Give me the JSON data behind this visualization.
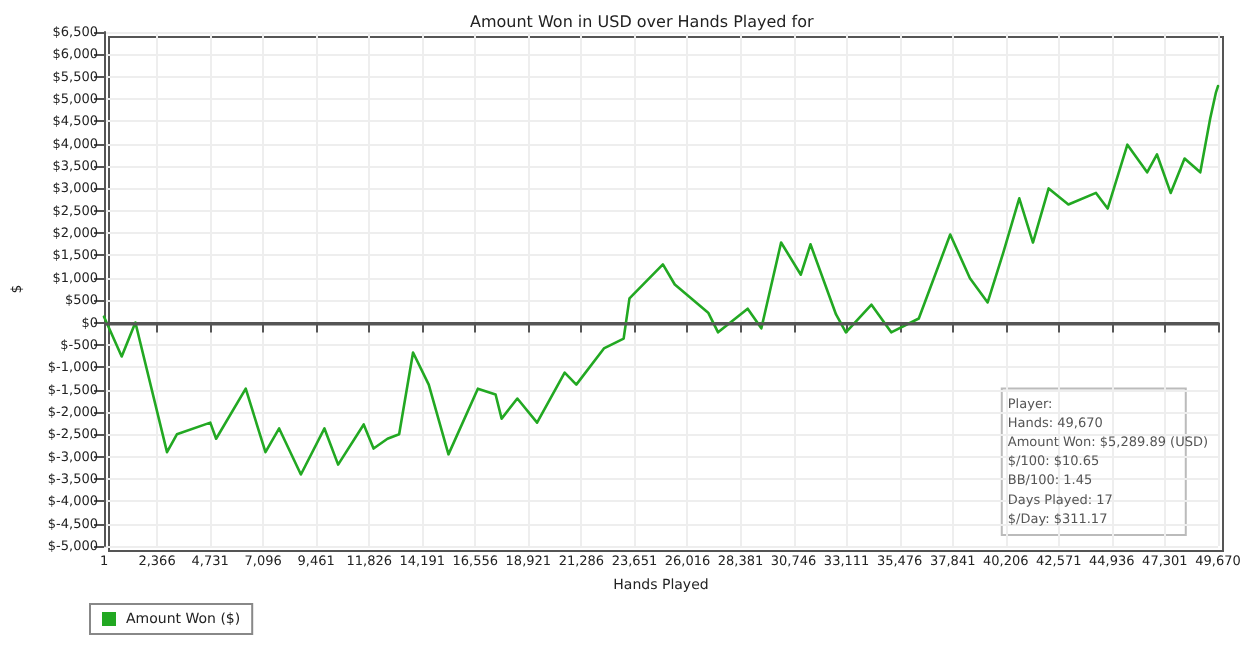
{
  "chart_data": {
    "type": "line",
    "title": "Amount Won in USD over Hands Played for",
    "xlabel": "Hands Played",
    "ylabel": "$",
    "x": [
      1,
      790,
      1400,
      2810,
      3250,
      4740,
      5000,
      6320,
      7200,
      7810,
      8780,
      9830,
      10440,
      11580,
      12020,
      12640,
      13160,
      13780,
      14480,
      15360,
      16670,
      17460,
      17730,
      18430,
      19310,
      20540,
      21060,
      22290,
      23170,
      23430,
      24920,
      25450,
      26940,
      27380,
      28700,
      29310,
      30190,
      31070,
      31500,
      32640,
      33080,
      34220,
      35100,
      36330,
      37730,
      38610,
      39400,
      40100,
      40810,
      41420,
      42120,
      43000,
      44230,
      44750,
      45630,
      46510,
      46950,
      47560,
      48180,
      48880,
      49320,
      49580,
      49670
    ],
    "series": [
      {
        "name": "Amount Won ($)",
        "color": "#22a822",
        "values": [
          130,
          -760,
          0,
          -2900,
          -2500,
          -2240,
          -2600,
          -1480,
          -2900,
          -2370,
          -3400,
          -2370,
          -3180,
          -2280,
          -2820,
          -2600,
          -2500,
          -670,
          -1390,
          -2950,
          -1480,
          -1610,
          -2150,
          -1700,
          -2240,
          -1120,
          -1390,
          -580,
          -360,
          540,
          1300,
          850,
          220,
          -220,
          310,
          -130,
          1790,
          1070,
          1750,
          180,
          -220,
          400,
          -220,
          90,
          1970,
          990,
          450,
          1570,
          2780,
          1790,
          3000,
          2640,
          2900,
          2550,
          3980,
          3360,
          3760,
          2900,
          3670,
          3360,
          4560,
          5150,
          5290
        ]
      }
    ],
    "xlim": [
      1,
      49670
    ],
    "xticks": [
      {
        "value": 1,
        "label": "1"
      },
      {
        "value": 2366,
        "label": "2,366"
      },
      {
        "value": 4731,
        "label": "4,731"
      },
      {
        "value": 7096,
        "label": "7,096"
      },
      {
        "value": 9461,
        "label": "9,461"
      },
      {
        "value": 11826,
        "label": "11,826"
      },
      {
        "value": 14191,
        "label": "14,191"
      },
      {
        "value": 16556,
        "label": "16,556"
      },
      {
        "value": 18921,
        "label": "18,921"
      },
      {
        "value": 21286,
        "label": "21,286"
      },
      {
        "value": 23651,
        "label": "23,651"
      },
      {
        "value": 26016,
        "label": "26,016"
      },
      {
        "value": 28381,
        "label": "28,381"
      },
      {
        "value": 30746,
        "label": "30,746"
      },
      {
        "value": 33111,
        "label": "33,111"
      },
      {
        "value": 35476,
        "label": "35,476"
      },
      {
        "value": 37841,
        "label": "37,841"
      },
      {
        "value": 40206,
        "label": "40,206"
      },
      {
        "value": 42571,
        "label": "42,571"
      },
      {
        "value": 44936,
        "label": "44,936"
      },
      {
        "value": 47301,
        "label": "47,301"
      },
      {
        "value": 49670,
        "label": "49,670"
      }
    ],
    "ylim": [
      -5000,
      6500
    ],
    "yticks": [
      {
        "value": -5000,
        "label": "$-5,000"
      },
      {
        "value": -4500,
        "label": "$-4,500"
      },
      {
        "value": -4000,
        "label": "$-4,000"
      },
      {
        "value": -3500,
        "label": "$-3,500"
      },
      {
        "value": -3000,
        "label": "$-3,000"
      },
      {
        "value": -2500,
        "label": "$-2,500"
      },
      {
        "value": -2000,
        "label": "$-2,000"
      },
      {
        "value": -1500,
        "label": "$-1,500"
      },
      {
        "value": -1000,
        "label": "$-1,000"
      },
      {
        "value": -500,
        "label": "$-500"
      },
      {
        "value": 0,
        "label": "$0"
      },
      {
        "value": 500,
        "label": "$500"
      },
      {
        "value": 1000,
        "label": "$1,000"
      },
      {
        "value": 1500,
        "label": "$1,500"
      },
      {
        "value": 2000,
        "label": "$2,000"
      },
      {
        "value": 2500,
        "label": "$2,500"
      },
      {
        "value": 3000,
        "label": "$3,000"
      },
      {
        "value": 3500,
        "label": "$3,500"
      },
      {
        "value": 4000,
        "label": "$4,000"
      },
      {
        "value": 4500,
        "label": "$4,500"
      },
      {
        "value": 5000,
        "label": "$5,000"
      },
      {
        "value": 5500,
        "label": "$5,500"
      },
      {
        "value": 6000,
        "label": "$6,000"
      },
      {
        "value": 6500,
        "label": "$6,500"
      }
    ],
    "ref_lines": [
      {
        "axis": "y",
        "value": 0,
        "color": "#555555"
      }
    ],
    "annotations": [
      "Player:",
      "Hands: 49,670",
      "Amount Won: $5,289.89 (USD)",
      "$/100: $10.65",
      "BB/100: 1.45",
      "Days Played: 17",
      "$/Day: $311.17"
    ],
    "grid": true,
    "legend": "bottom left",
    "marker": "none",
    "line_style": "solid"
  }
}
